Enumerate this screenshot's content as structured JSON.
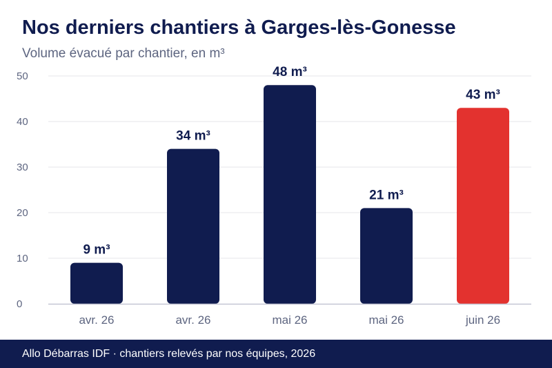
{
  "title": "Nos derniers chantiers à Garges-lès-Gonesse",
  "subtitle": "Volume évacué par chantier, en m³",
  "footer": "Allo Débarras IDF · chantiers relevés par nos équipes, 2026",
  "chart_data": {
    "type": "bar",
    "categories": [
      "avr. 26",
      "avr. 26",
      "mai 26",
      "mai 26",
      "juin 26"
    ],
    "values": [
      9,
      34,
      48,
      21,
      43
    ],
    "data_labels": [
      "9 m³",
      "34 m³",
      "48 m³",
      "21 m³",
      "43 m³"
    ],
    "yticks": [
      0,
      10,
      20,
      30,
      40,
      50
    ],
    "ylim": [
      0,
      50
    ],
    "grid": true,
    "colors": {
      "default": "#101c4f",
      "highlight": "#e3322f",
      "grid": "#e6e6ea",
      "axis": "#c4c6d4",
      "tick_label": "#5d6580",
      "data_label": "#101c4f"
    },
    "highlight_index": 4
  }
}
